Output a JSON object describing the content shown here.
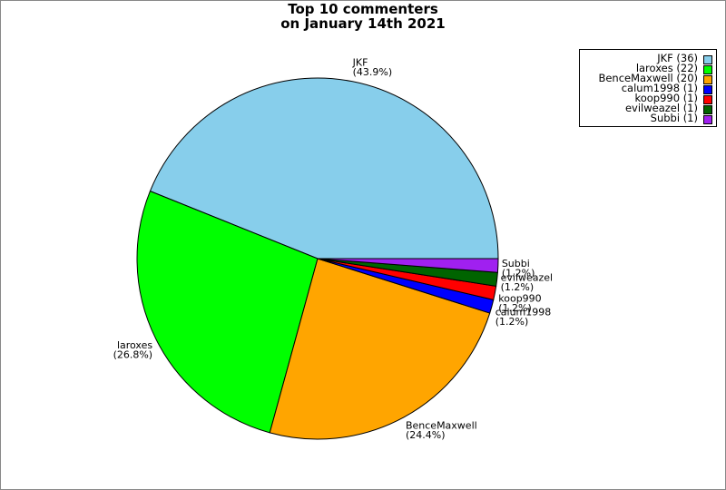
{
  "title_lines": [
    "Top 10 commenters",
    "on January 14th 2021"
  ],
  "legend_placement": "top-right",
  "chart_data": {
    "type": "pie",
    "title": "Top 10 commenters on January 14th 2021",
    "start_angle_deg": 0,
    "direction": "counterclockwise",
    "slices": [
      {
        "name": "JKF",
        "value": 36,
        "percent": "43.9%",
        "legend": "JKF (36)",
        "color": "#87CEEB"
      },
      {
        "name": "laroxes",
        "value": 22,
        "percent": "26.8%",
        "legend": "laroxes (22)",
        "color": "#00FF00"
      },
      {
        "name": "BenceMaxwell",
        "value": 20,
        "percent": "24.4%",
        "legend": "BenceMaxwell (20)",
        "color": "#FFA500"
      },
      {
        "name": "calum1998",
        "value": 1,
        "percent": "1.2%",
        "legend": "calum1998 (1)",
        "color": "#0000FF"
      },
      {
        "name": "koop990",
        "value": 1,
        "percent": "1.2%",
        "legend": "koop990 (1)",
        "color": "#FF0000"
      },
      {
        "name": "evilweazel",
        "value": 1,
        "percent": "1.2%",
        "legend": "evilweazel (1)",
        "color": "#006400"
      },
      {
        "name": "Subbi",
        "value": 1,
        "percent": "1.2%",
        "legend": "Subbi (1)",
        "color": "#A020F0"
      }
    ]
  }
}
